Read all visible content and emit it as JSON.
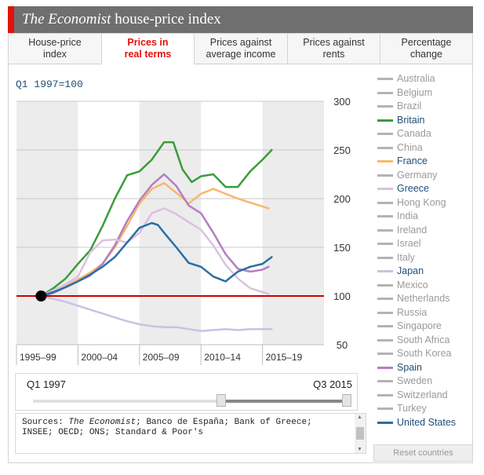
{
  "header": {
    "title_italic": "The Economist",
    "title_rest": " house-price index",
    "accent_color": "#e3120b"
  },
  "tabs": [
    {
      "line1": "House-price",
      "line2": "index",
      "active": false
    },
    {
      "line1": "Prices in",
      "line2": "real terms",
      "active": true
    },
    {
      "line1": "Prices against",
      "line2": "average income",
      "active": false
    },
    {
      "line1": "Prices against",
      "line2": "rents",
      "active": false
    },
    {
      "line1": "Percentage",
      "line2": "change",
      "active": false
    }
  ],
  "base_label": "Q1 1997=100",
  "legend": [
    {
      "name": "Australia",
      "on": false
    },
    {
      "name": "Belgium",
      "on": false
    },
    {
      "name": "Brazil",
      "on": false
    },
    {
      "name": "Britain",
      "on": true,
      "color": "#3a9c3a"
    },
    {
      "name": "Canada",
      "on": false
    },
    {
      "name": "China",
      "on": false
    },
    {
      "name": "France",
      "on": true,
      "color": "#f7b86c"
    },
    {
      "name": "Germany",
      "on": false
    },
    {
      "name": "Greece",
      "on": true,
      "color": "#dcc0e2"
    },
    {
      "name": "Hong Kong",
      "on": false
    },
    {
      "name": "India",
      "on": false
    },
    {
      "name": "Ireland",
      "on": false
    },
    {
      "name": "Israel",
      "on": false
    },
    {
      "name": "Italy",
      "on": false
    },
    {
      "name": "Japan",
      "on": true,
      "color": "#c8c3e1"
    },
    {
      "name": "Mexico",
      "on": false
    },
    {
      "name": "Netherlands",
      "on": false
    },
    {
      "name": "Russia",
      "on": false
    },
    {
      "name": "Singapore",
      "on": false
    },
    {
      "name": "South Africa",
      "on": false
    },
    {
      "name": "South Korea",
      "on": false
    },
    {
      "name": "Spain",
      "on": true,
      "color": "#b57ec0"
    },
    {
      "name": "Sweden",
      "on": false
    },
    {
      "name": "Switzerland",
      "on": false
    },
    {
      "name": "Turkey",
      "on": false
    },
    {
      "name": "United States",
      "on": true,
      "color": "#2a6ea6"
    }
  ],
  "slider": {
    "start_label": "Q1 1997",
    "end_label": "Q3 2015"
  },
  "sources": {
    "prefix": "Sources: ",
    "italic": "The Economist",
    "rest": "; Banco de España; Bank of Greece; INSEE; OECD; ONS; Standard & Poor's"
  },
  "reset_label": "Reset countries",
  "chart_data": {
    "type": "line",
    "baseline": 100,
    "baseline_color": "#cc0000",
    "ylim": [
      50,
      300
    ],
    "yticks": [
      50,
      100,
      150,
      200,
      250,
      300
    ],
    "xlim": [
      1995,
      2020
    ],
    "xbands": [
      {
        "label": "1995–99",
        "from": 1995,
        "to": 2000
      },
      {
        "label": "2000–04",
        "from": 2000,
        "to": 2005
      },
      {
        "label": "2005–09",
        "from": 2005,
        "to": 2010
      },
      {
        "label": "2010–14",
        "from": 2010,
        "to": 2015
      },
      {
        "label": "2015–19",
        "from": 2015,
        "to": 2020
      }
    ],
    "grid": true,
    "legend_placement": "right",
    "series": [
      {
        "name": "Britain",
        "color": "#3a9c3a",
        "x": [
          1997,
          1998,
          1999,
          2000,
          2001,
          2002,
          2003,
          2004,
          2005,
          2006,
          2007,
          2007.75,
          2008.5,
          2009.25,
          2010,
          2011,
          2012,
          2013,
          2014,
          2015,
          2015.75
        ],
        "y": [
          100,
          108,
          118,
          133,
          147,
          172,
          200,
          224,
          228,
          240,
          258,
          258,
          230,
          217,
          223,
          225,
          212,
          212,
          228,
          240,
          250
        ]
      },
      {
        "name": "France",
        "color": "#f7b86c",
        "x": [
          1997,
          1998,
          1999,
          2000,
          2001,
          2002,
          2003,
          2004,
          2005,
          2006,
          2007,
          2008,
          2009,
          2010,
          2011,
          2012,
          2013,
          2014,
          2015,
          2015.5
        ],
        "y": [
          100,
          103,
          110,
          117,
          124,
          133,
          150,
          172,
          195,
          210,
          216,
          206,
          195,
          205,
          210,
          205,
          200,
          196,
          192,
          190
        ]
      },
      {
        "name": "Spain",
        "color": "#b57ec0",
        "x": [
          1997,
          1998,
          1999,
          2000,
          2001,
          2002,
          2003,
          2004,
          2005,
          2006,
          2007,
          2008,
          2009,
          2010,
          2011,
          2012,
          2013,
          2014,
          2015,
          2015.5
        ],
        "y": [
          100,
          103,
          109,
          115,
          121,
          133,
          152,
          177,
          198,
          214,
          225,
          213,
          193,
          185,
          165,
          143,
          128,
          125,
          127,
          130
        ]
      },
      {
        "name": "Greece",
        "color": "#dcc0e2",
        "x": [
          1997,
          1998,
          1999,
          2000,
          2001,
          2002,
          2003,
          2004,
          2005,
          2006,
          2007,
          2008,
          2009,
          2010,
          2011,
          2012,
          2013,
          2014,
          2015,
          2015.5
        ],
        "y": [
          100,
          106,
          112,
          120,
          145,
          157,
          158,
          155,
          165,
          185,
          190,
          184,
          176,
          168,
          152,
          132,
          118,
          108,
          104,
          102
        ]
      },
      {
        "name": "United States",
        "color": "#2a6ea6",
        "x": [
          1997,
          1998,
          1999,
          2000,
          2001,
          2002,
          2003,
          2004,
          2005,
          2006,
          2006.5,
          2007,
          2008,
          2009,
          2010,
          2011,
          2012,
          2013,
          2014,
          2015,
          2015.75
        ],
        "y": [
          100,
          104,
          109,
          115,
          122,
          130,
          140,
          155,
          170,
          175,
          173,
          165,
          150,
          134,
          130,
          120,
          115,
          125,
          130,
          133,
          140
        ]
      },
      {
        "name": "Japan",
        "color": "#c8c3e1",
        "x": [
          1997,
          1998,
          1999,
          2000,
          2001,
          2002,
          2003,
          2004,
          2005,
          2006,
          2007,
          2008,
          2009,
          2010,
          2011,
          2012,
          2013,
          2014,
          2015,
          2015.75
        ],
        "y": [
          100,
          97,
          94,
          90,
          86,
          82,
          78,
          74,
          71,
          69,
          68,
          68,
          66,
          64,
          65,
          66,
          65,
          66,
          66,
          66
        ]
      }
    ]
  }
}
